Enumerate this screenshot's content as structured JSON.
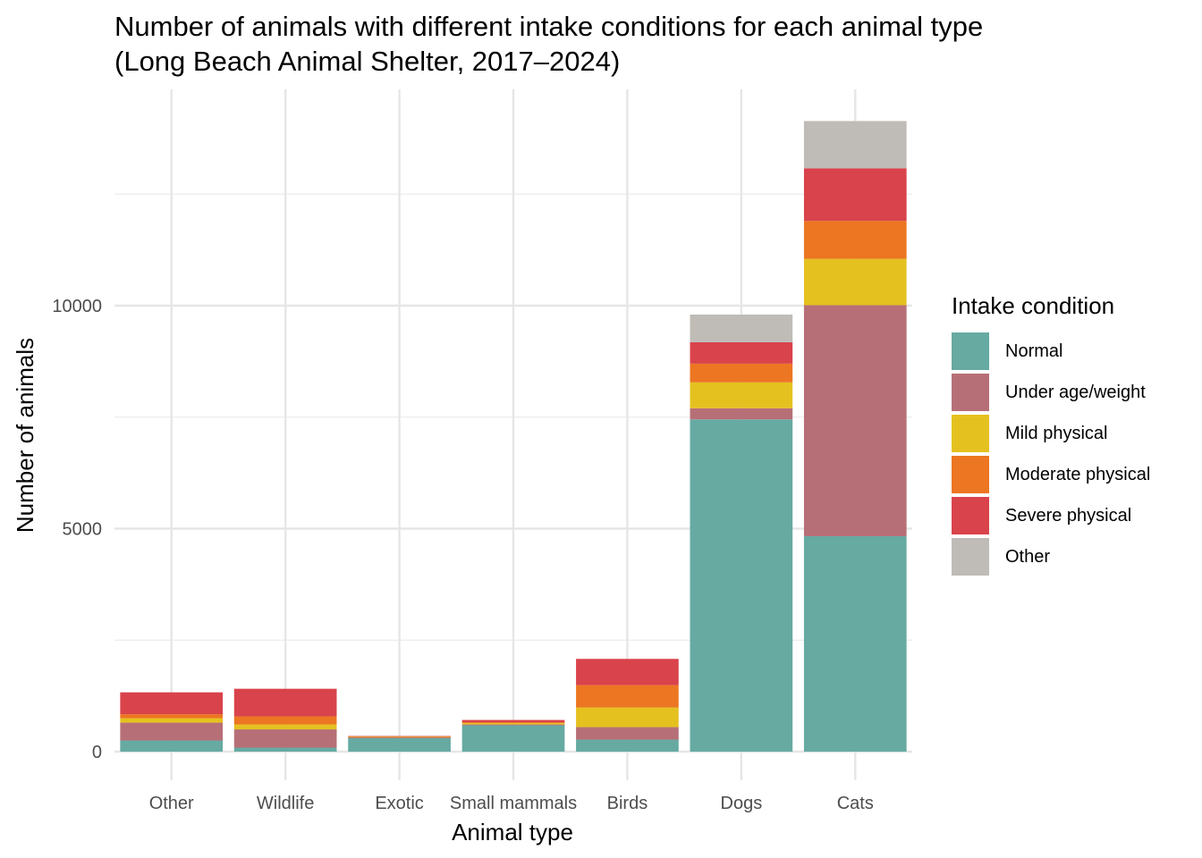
{
  "chart_data": {
    "type": "bar",
    "stacked": true,
    "title_lines": [
      "Number of animals with different intake conditions for each animal type",
      "(Long Beach Animal Shelter, 2017–2024)"
    ],
    "xlabel": "Animal type",
    "ylabel": "Number of animals",
    "categories": [
      "Other",
      "Wildlife",
      "Exotic",
      "Small mammals",
      "Birds",
      "Dogs",
      "Cats"
    ],
    "ylim": [
      -700,
      14800
    ],
    "yticks": [
      0,
      5000,
      10000
    ],
    "grid": true,
    "legend_title": "Intake condition",
    "legend_position": "right",
    "series": [
      {
        "name": "Normal",
        "color": "#66aaa2",
        "values": [
          250,
          90,
          300,
          590,
          270,
          7450,
          4830
        ]
      },
      {
        "name": "Under age/weight",
        "color": "#b76f77",
        "values": [
          400,
          410,
          20,
          20,
          280,
          250,
          5180
        ]
      },
      {
        "name": "Mild physical",
        "color": "#e5c120",
        "values": [
          100,
          110,
          10,
          30,
          440,
          580,
          1040
        ]
      },
      {
        "name": "Moderate physical",
        "color": "#ec7622",
        "values": [
          90,
          180,
          10,
          20,
          500,
          420,
          850
        ]
      },
      {
        "name": "Severe physical",
        "color": "#d9434b",
        "values": [
          490,
          620,
          10,
          50,
          590,
          480,
          1180
        ]
      },
      {
        "name": "Other",
        "color": "#bfbcb7",
        "values": [
          0,
          0,
          0,
          0,
          0,
          620,
          1060
        ]
      }
    ]
  }
}
